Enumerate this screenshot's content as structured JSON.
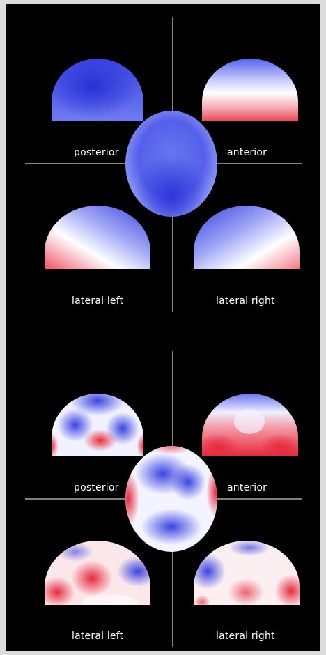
{
  "panels": [
    {
      "id": "top",
      "labels": {
        "posterior": "posterior",
        "anterior": "anterior",
        "lateral_left": "lateral left",
        "lateral_right": "lateral right"
      }
    },
    {
      "id": "bottom",
      "labels": {
        "posterior": "posterior",
        "anterior": "anterior",
        "lateral_left": "lateral left",
        "lateral_right": "lateral right"
      }
    }
  ],
  "colors": {
    "background": "#000000",
    "frame": "#dcdcdc",
    "crosshair": "#ffffff",
    "negative": "#2f37e6",
    "neutral": "#ffffff",
    "positive": "#e8283a"
  }
}
